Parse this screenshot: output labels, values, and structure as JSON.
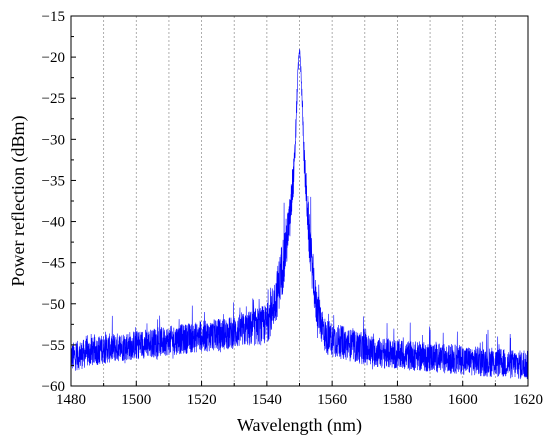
{
  "chart_data": {
    "type": "line",
    "title": "",
    "xlabel": "Wavelength (nm)",
    "ylabel": "Power reflection (dBm)",
    "xlim": [
      1480,
      1620
    ],
    "ylim": [
      -60,
      -15
    ],
    "x_ticks": [
      1480,
      1500,
      1520,
      1540,
      1560,
      1580,
      1600,
      1620
    ],
    "x_tick_labels": [
      "1480",
      "1500",
      "1520",
      "1540",
      "1560",
      "1580",
      "1600",
      "1620"
    ],
    "y_ticks": [
      -60,
      -55,
      -50,
      -45,
      -40,
      -35,
      -30,
      -25,
      -20,
      -15
    ],
    "y_tick_labels": [
      "−60",
      "−55",
      "−50",
      "−45",
      "−40",
      "−35",
      "−30",
      "−25",
      "−20",
      "−15"
    ],
    "grid": "vertical dotted lines every 10 nm",
    "legend": "none",
    "series": [
      {
        "color": "#0000ff",
        "envelope": [
          {
            "x": 1480,
            "mean": -56.5,
            "spread": 1.8
          },
          {
            "x": 1490,
            "mean": -55.5,
            "spread": 1.8
          },
          {
            "x": 1500,
            "mean": -55.0,
            "spread": 1.8
          },
          {
            "x": 1510,
            "mean": -54.5,
            "spread": 1.8
          },
          {
            "x": 1520,
            "mean": -54.0,
            "spread": 1.9
          },
          {
            "x": 1530,
            "mean": -53.5,
            "spread": 2.0
          },
          {
            "x": 1535,
            "mean": -53.0,
            "spread": 2.2
          },
          {
            "x": 1540,
            "mean": -52.5,
            "spread": 2.5
          },
          {
            "x": 1543,
            "mean": -49.0,
            "spread": 3.0
          },
          {
            "x": 1545,
            "mean": -45.0,
            "spread": 3.5
          },
          {
            "x": 1547,
            "mean": -40.0,
            "spread": 3.0
          },
          {
            "x": 1548.5,
            "mean": -33.0,
            "spread": 2.0
          },
          {
            "x": 1549.5,
            "mean": -22.0,
            "spread": 1.0
          },
          {
            "x": 1550,
            "mean": -19.0,
            "spread": 0.3
          },
          {
            "x": 1550.5,
            "mean": -22.0,
            "spread": 1.0
          },
          {
            "x": 1551.5,
            "mean": -33.0,
            "spread": 2.0
          },
          {
            "x": 1553,
            "mean": -42.0,
            "spread": 3.0
          },
          {
            "x": 1555,
            "mean": -50.0,
            "spread": 2.5
          },
          {
            "x": 1558,
            "mean": -54.0,
            "spread": 2.2
          },
          {
            "x": 1565,
            "mean": -55.0,
            "spread": 2.0
          },
          {
            "x": 1575,
            "mean": -56.0,
            "spread": 1.9
          },
          {
            "x": 1590,
            "mean": -56.5,
            "spread": 1.8
          },
          {
            "x": 1605,
            "mean": -57.0,
            "spread": 1.8
          },
          {
            "x": 1620,
            "mean": -57.5,
            "spread": 1.8
          }
        ]
      }
    ]
  }
}
